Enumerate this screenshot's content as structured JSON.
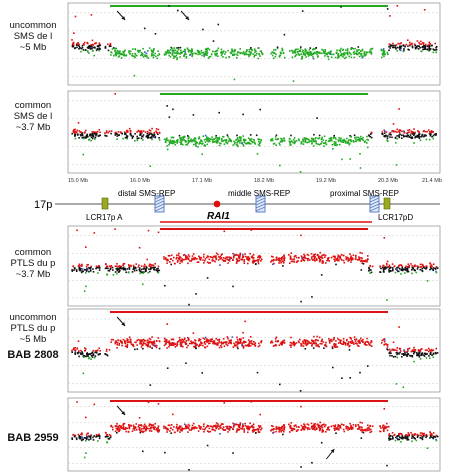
{
  "panels": [
    {
      "id": "uncommon-sms-del",
      "label_lines": [
        "uncommon",
        "SMS de l",
        "~5 Mb"
      ],
      "type": "deletion",
      "bar_color": "#22aa22",
      "extent": "uncommon",
      "arrows": [
        {
          "dir": "down-right",
          "at_mb": 16.0
        },
        {
          "dir": "down-right",
          "at_mb": 17.1
        }
      ]
    },
    {
      "id": "common-sms-del",
      "label_lines": [
        "common",
        "SMS de l",
        "~3.7 Mb"
      ],
      "type": "deletion",
      "bar_color": "#22aa22",
      "extent": "common",
      "arrows": []
    },
    {
      "id": "common-ptls-dup",
      "label_lines": [
        "common",
        "PTLS du p",
        "~3.7 Mb"
      ],
      "type": "duplication",
      "bar_color": "#dd1111",
      "extent": "common",
      "arrows": []
    },
    {
      "id": "uncommon-ptls-dup",
      "label_lines": [
        "uncommon",
        "PTLS du p",
        "~5 Mb"
      ],
      "bold_label": "BAB 2808",
      "type": "duplication",
      "bar_color": "#dd1111",
      "extent": "uncommon",
      "arrows": [
        {
          "dir": "down-right",
          "at_mb": 16.0
        }
      ]
    },
    {
      "id": "bab-2959",
      "label_lines": [],
      "bold_label": "BAB 2959",
      "type": "duplication",
      "bar_color": "#dd1111",
      "extent": "uncommon",
      "arrows": [
        {
          "dir": "down-right",
          "at_mb": 16.0
        },
        {
          "dir": "up-right",
          "at_mb": 19.6
        }
      ]
    }
  ],
  "axis": {
    "ticks": [
      "15.0 Mb",
      "16.0 Mb",
      "17.1 Mb",
      "18.2 Mb",
      "19.2 Mb",
      "20.3 Mb",
      "21.4 Mb"
    ]
  },
  "map": {
    "chromosome": "17p",
    "labels": {
      "distal": "distal SMS-REP",
      "middle": "middle SMS-REP",
      "proximal": "proximal SMS-REP",
      "lcr_a": "LCR17p A",
      "lcr_d": "LCR17pD",
      "gene": "RAI1"
    },
    "colors": {
      "lcr": "#99aa22",
      "rep": "#5b7fc4",
      "gene": "#dd1111",
      "common_line": "#dd1111"
    }
  },
  "colors": {
    "del": "#22aa22",
    "dup": "#dd1111",
    "normal": "#111111",
    "blue": "#3355cc",
    "frame": "#999999",
    "grid": "#bbbbbb"
  }
}
